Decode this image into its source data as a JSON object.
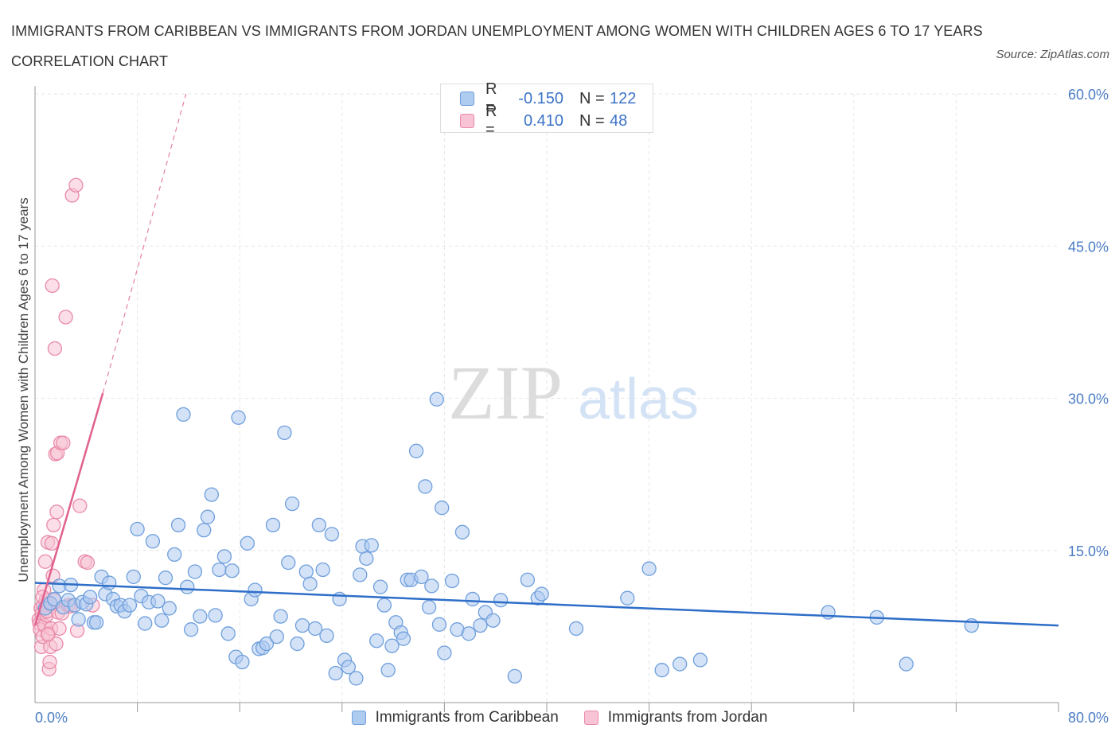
{
  "title": "IMMIGRANTS FROM CARIBBEAN VS IMMIGRANTS FROM JORDAN UNEMPLOYMENT AMONG WOMEN WITH CHILDREN AGES 6 TO 17 YEARS CORRELATION CHART",
  "source": "Source: ZipAtlas.com",
  "watermark": {
    "zip": "ZIP",
    "atlas": "atlas"
  },
  "colors": {
    "caribbean_fill": "#aecbf0",
    "caribbean_stroke": "#6f9fdc",
    "caribbean_line": "#2e6ec8",
    "jordan_fill": "#f8c3d4",
    "jordan_stroke": "#e98aa9",
    "jordan_line": "#e0608e",
    "axis_label": "#4a7cc4",
    "grid": "#e6e6e6"
  },
  "legend": {
    "rows": [
      {
        "r_label": "R =",
        "r_value": "-0.150",
        "n_label": "N =",
        "n_value": "122"
      },
      {
        "r_label": "R =",
        "r_value": "0.410",
        "n_label": "N =",
        "n_value": "48"
      }
    ]
  },
  "chart_data": {
    "type": "scatter",
    "title": "IMMIGRANTS FROM CARIBBEAN VS IMMIGRANTS FROM JORDAN UNEMPLOYMENT AMONG WOMEN WITH CHILDREN AGES 6 TO 17 YEARS CORRELATION CHART",
    "xlabel": "",
    "ylabel": "Unemployment Among Women with Children Ages 6 to 17 years",
    "xlim": [
      0,
      80
    ],
    "ylim": [
      0,
      60
    ],
    "x_tick_labels": [
      {
        "value": 0,
        "label": "0.0%"
      },
      {
        "value": 80,
        "label": "80.0%"
      }
    ],
    "y_ticks": [
      {
        "value": 15,
        "label": "15.0%"
      },
      {
        "value": 30,
        "label": "30.0%"
      },
      {
        "value": 45,
        "label": "45.0%"
      },
      {
        "value": 60,
        "label": "60.0%"
      }
    ],
    "grid": true,
    "legend_position": "bottom",
    "series": [
      {
        "name": "Immigrants from Caribbean",
        "r": -0.15,
        "n": 122,
        "trend": {
          "x": [
            0,
            80
          ],
          "y": [
            11.8,
            7.6
          ],
          "style": "solid"
        },
        "points": [
          [
            0.8,
            9.3
          ],
          [
            1.2,
            9.8
          ],
          [
            1.5,
            10.2
          ],
          [
            1.9,
            11.5
          ],
          [
            2.2,
            9.4
          ],
          [
            2.6,
            10.1
          ],
          [
            2.8,
            11.6
          ],
          [
            3.1,
            9.6
          ],
          [
            3.4,
            8.2
          ],
          [
            3.7,
            9.9
          ],
          [
            4.0,
            9.7
          ],
          [
            4.3,
            10.4
          ],
          [
            4.6,
            7.9
          ],
          [
            4.8,
            7.9
          ],
          [
            5.2,
            12.4
          ],
          [
            5.5,
            10.7
          ],
          [
            5.8,
            11.8
          ],
          [
            6.1,
            10.2
          ],
          [
            6.4,
            9.5
          ],
          [
            6.7,
            9.6
          ],
          [
            7.0,
            9.0
          ],
          [
            7.4,
            9.6
          ],
          [
            7.7,
            12.4
          ],
          [
            8.0,
            17.1
          ],
          [
            8.3,
            10.5
          ],
          [
            8.6,
            7.8
          ],
          [
            8.9,
            9.9
          ],
          [
            9.2,
            15.9
          ],
          [
            9.6,
            10.0
          ],
          [
            9.9,
            8.1
          ],
          [
            10.2,
            12.3
          ],
          [
            10.5,
            9.3
          ],
          [
            10.9,
            14.6
          ],
          [
            11.2,
            17.5
          ],
          [
            11.6,
            28.4
          ],
          [
            11.9,
            11.4
          ],
          [
            12.2,
            7.2
          ],
          [
            12.5,
            12.9
          ],
          [
            12.9,
            8.5
          ],
          [
            13.2,
            17.0
          ],
          [
            13.5,
            18.3
          ],
          [
            13.8,
            20.5
          ],
          [
            14.1,
            8.6
          ],
          [
            14.4,
            13.1
          ],
          [
            14.8,
            14.4
          ],
          [
            15.1,
            6.8
          ],
          [
            15.4,
            13.0
          ],
          [
            15.7,
            4.5
          ],
          [
            15.9,
            28.1
          ],
          [
            16.2,
            4.0
          ],
          [
            16.6,
            15.7
          ],
          [
            16.9,
            10.2
          ],
          [
            17.2,
            11.1
          ],
          [
            17.5,
            5.3
          ],
          [
            17.8,
            5.4
          ],
          [
            18.1,
            5.8
          ],
          [
            18.6,
            17.5
          ],
          [
            18.9,
            6.5
          ],
          [
            19.2,
            8.5
          ],
          [
            19.5,
            26.6
          ],
          [
            19.8,
            13.8
          ],
          [
            20.1,
            19.6
          ],
          [
            20.5,
            5.8
          ],
          [
            20.9,
            7.6
          ],
          [
            21.2,
            12.9
          ],
          [
            21.5,
            11.7
          ],
          [
            21.9,
            7.3
          ],
          [
            22.2,
            17.5
          ],
          [
            22.5,
            13.1
          ],
          [
            22.8,
            6.6
          ],
          [
            23.2,
            16.6
          ],
          [
            23.5,
            2.9
          ],
          [
            23.8,
            10.2
          ],
          [
            24.2,
            4.2
          ],
          [
            24.5,
            3.5
          ],
          [
            25.1,
            2.4
          ],
          [
            25.4,
            12.6
          ],
          [
            25.6,
            15.4
          ],
          [
            25.9,
            14.2
          ],
          [
            26.3,
            15.5
          ],
          [
            26.7,
            6.1
          ],
          [
            27.0,
            11.4
          ],
          [
            27.3,
            9.6
          ],
          [
            27.6,
            3.2
          ],
          [
            27.9,
            5.6
          ],
          [
            28.2,
            7.9
          ],
          [
            28.6,
            6.9
          ],
          [
            28.8,
            6.3
          ],
          [
            29.1,
            12.1
          ],
          [
            29.4,
            12.1
          ],
          [
            29.8,
            24.8
          ],
          [
            30.2,
            12.4
          ],
          [
            30.5,
            21.3
          ],
          [
            30.8,
            9.4
          ],
          [
            31.0,
            11.5
          ],
          [
            31.4,
            29.9
          ],
          [
            31.6,
            7.7
          ],
          [
            31.8,
            19.2
          ],
          [
            32.0,
            4.9
          ],
          [
            32.6,
            12.0
          ],
          [
            33.0,
            7.2
          ],
          [
            33.4,
            16.8
          ],
          [
            33.9,
            6.8
          ],
          [
            34.2,
            10.2
          ],
          [
            34.8,
            7.6
          ],
          [
            35.2,
            8.9
          ],
          [
            35.8,
            8.1
          ],
          [
            36.4,
            10.1
          ],
          [
            37.5,
            2.6
          ],
          [
            38.5,
            12.1
          ],
          [
            39.3,
            10.3
          ],
          [
            39.6,
            10.7
          ],
          [
            42.3,
            7.3
          ],
          [
            46.3,
            10.3
          ],
          [
            48.0,
            13.2
          ],
          [
            49.0,
            3.2
          ],
          [
            50.4,
            3.8
          ],
          [
            52.0,
            4.2
          ],
          [
            62.0,
            8.9
          ],
          [
            65.8,
            8.4
          ],
          [
            68.1,
            3.8
          ],
          [
            73.2,
            7.6
          ]
        ]
      },
      {
        "name": "Immigrants from Jordan",
        "r": 0.41,
        "n": 48,
        "trend": {
          "x": [
            0,
            5.3,
            11.8
          ],
          "y": [
            7.6,
            30.5,
            60.0
          ],
          "style": "solid-then-dashed"
        },
        "points": [
          [
            0.3,
            8.2
          ],
          [
            0.35,
            7.8
          ],
          [
            0.4,
            7.2
          ],
          [
            0.45,
            9.3
          ],
          [
            0.5,
            5.5
          ],
          [
            0.55,
            8.8
          ],
          [
            0.6,
            6.5
          ],
          [
            0.65,
            9.6
          ],
          [
            0.7,
            11.1
          ],
          [
            0.75,
            7.6
          ],
          [
            0.8,
            13.9
          ],
          [
            0.85,
            10.1
          ],
          [
            0.9,
            8.6
          ],
          [
            0.95,
            9.0
          ],
          [
            1.0,
            15.8
          ],
          [
            1.05,
            6.8
          ],
          [
            1.1,
            3.3
          ],
          [
            1.15,
            4.0
          ],
          [
            1.2,
            5.5
          ],
          [
            1.25,
            7.3
          ],
          [
            1.3,
            15.7
          ],
          [
            1.35,
            41.1
          ],
          [
            1.4,
            12.5
          ],
          [
            1.45,
            17.5
          ],
          [
            1.5,
            10.1
          ],
          [
            1.55,
            34.9
          ],
          [
            1.6,
            24.5
          ],
          [
            1.65,
            5.8
          ],
          [
            1.7,
            18.8
          ],
          [
            1.75,
            24.6
          ],
          [
            1.8,
            8.9
          ],
          [
            1.9,
            7.3
          ],
          [
            2.0,
            25.6
          ],
          [
            2.1,
            8.8
          ],
          [
            2.2,
            25.6
          ],
          [
            2.4,
            38.0
          ],
          [
            2.6,
            9.6
          ],
          [
            2.8,
            9.5
          ],
          [
            2.9,
            50.0
          ],
          [
            3.2,
            51.0
          ],
          [
            3.3,
            7.1
          ],
          [
            3.5,
            19.4
          ],
          [
            3.9,
            13.9
          ],
          [
            4.1,
            13.8
          ],
          [
            4.5,
            9.6
          ],
          [
            1.0,
            6.7
          ],
          [
            0.6,
            10.4
          ],
          [
            1.2,
            9.7
          ]
        ]
      }
    ]
  }
}
